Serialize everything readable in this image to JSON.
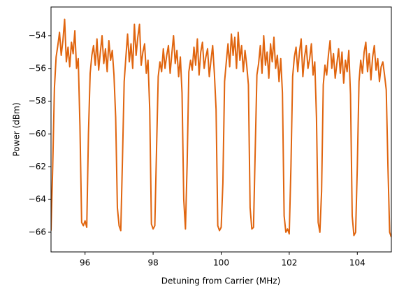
{
  "chart_data": {
    "type": "line",
    "xlabel": "Detuning from Carrier (MHz)",
    "ylabel": "Power (dBm)",
    "xlim": [
      95,
      105
    ],
    "xticks": [
      96,
      98,
      100,
      102,
      104
    ],
    "ylim": [
      -67.2,
      -52.25
    ],
    "yticks": [
      {
        "value": -66,
        "label": "−66"
      },
      {
        "value": -64,
        "label": "−64"
      },
      {
        "value": -62,
        "label": "−62"
      },
      {
        "value": -60,
        "label": "−60"
      },
      {
        "value": -58,
        "label": "−58"
      },
      {
        "value": -56,
        "label": "−56"
      },
      {
        "value": -54,
        "label": "−54"
      }
    ],
    "series": [
      {
        "color": "#e0650f",
        "x": [
          95.0,
          95.05,
          95.1,
          95.15,
          95.2,
          95.25,
          95.3,
          95.35,
          95.4,
          95.45,
          95.5,
          95.55,
          95.6,
          95.65,
          95.7,
          95.75,
          95.8,
          95.85,
          95.9,
          95.95,
          96.0,
          96.05,
          96.1,
          96.15,
          96.2,
          96.25,
          96.3,
          96.35,
          96.4,
          96.45,
          96.5,
          96.55,
          96.6,
          96.65,
          96.7,
          96.75,
          96.8,
          96.85,
          96.9,
          96.95,
          97.0,
          97.05,
          97.1,
          97.15,
          97.2,
          97.25,
          97.3,
          97.35,
          97.4,
          97.45,
          97.5,
          97.55,
          97.6,
          97.65,
          97.7,
          97.75,
          97.8,
          97.85,
          97.9,
          97.95,
          98.0,
          98.05,
          98.1,
          98.15,
          98.2,
          98.25,
          98.3,
          98.35,
          98.4,
          98.45,
          98.5,
          98.55,
          98.6,
          98.65,
          98.7,
          98.75,
          98.8,
          98.85,
          98.9,
          98.95,
          99.0,
          99.05,
          99.1,
          99.15,
          99.2,
          99.25,
          99.3,
          99.35,
          99.4,
          99.45,
          99.5,
          99.55,
          99.6,
          99.65,
          99.7,
          99.75,
          99.8,
          99.85,
          99.9,
          99.95,
          100.0,
          100.05,
          100.1,
          100.15,
          100.2,
          100.25,
          100.3,
          100.35,
          100.4,
          100.45,
          100.5,
          100.55,
          100.6,
          100.65,
          100.7,
          100.75,
          100.8,
          100.85,
          100.9,
          100.95,
          101.0,
          101.05,
          101.1,
          101.15,
          101.2,
          101.25,
          101.3,
          101.35,
          101.4,
          101.45,
          101.5,
          101.55,
          101.6,
          101.65,
          101.7,
          101.75,
          101.8,
          101.85,
          101.9,
          101.95,
          102.0,
          102.05,
          102.1,
          102.15,
          102.2,
          102.25,
          102.3,
          102.35,
          102.4,
          102.45,
          102.5,
          102.55,
          102.6,
          102.65,
          102.7,
          102.75,
          102.8,
          102.85,
          102.9,
          102.95,
          103.0,
          103.05,
          103.1,
          103.15,
          103.2,
          103.25,
          103.3,
          103.35,
          103.4,
          103.45,
          103.5,
          103.55,
          103.6,
          103.65,
          103.7,
          103.75,
          103.8,
          103.85,
          103.9,
          103.95,
          104.0,
          104.05,
          104.1,
          104.15,
          104.2,
          104.25,
          104.3,
          104.35,
          104.4,
          104.45,
          104.5,
          104.55,
          104.6,
          104.65,
          104.7,
          104.75,
          104.8,
          104.85,
          104.9,
          104.95,
          105.0
        ],
        "values": [
          -65.9,
          -62.0,
          -57.2,
          -55.3,
          -54.6,
          -53.8,
          -55.2,
          -54.3,
          -53.0,
          -55.6,
          -54.7,
          -55.9,
          -54.4,
          -55.1,
          -53.7,
          -56.0,
          -55.4,
          -59.5,
          -65.4,
          -65.6,
          -65.3,
          -65.7,
          -60.0,
          -56.3,
          -55.2,
          -54.6,
          -55.8,
          -54.2,
          -56.1,
          -55.0,
          -54.0,
          -55.7,
          -54.8,
          -56.2,
          -54.3,
          -55.5,
          -54.9,
          -56.4,
          -59.0,
          -64.5,
          -65.6,
          -65.9,
          -61.5,
          -56.8,
          -55.3,
          -53.9,
          -55.6,
          -54.5,
          -56.0,
          -53.3,
          -55.2,
          -54.1,
          -53.3,
          -55.8,
          -55.0,
          -54.5,
          -56.3,
          -55.5,
          -58.5,
          -65.5,
          -65.8,
          -65.6,
          -61.0,
          -56.5,
          -55.6,
          -56.2,
          -54.8,
          -56.0,
          -55.2,
          -54.6,
          -56.3,
          -55.1,
          -54.0,
          -55.7,
          -54.9,
          -56.5,
          -55.3,
          -57.5,
          -64.0,
          -65.8,
          -61.8,
          -56.2,
          -55.5,
          -56.1,
          -54.7,
          -55.8,
          -54.2,
          -56.4,
          -55.0,
          -54.4,
          -56.0,
          -55.3,
          -54.8,
          -56.5,
          -55.5,
          -54.6,
          -56.3,
          -58.5,
          -65.6,
          -65.9,
          -65.7,
          -63.0,
          -56.8,
          -55.6,
          -54.5,
          -55.9,
          -53.9,
          -55.2,
          -54.1,
          -56.0,
          -53.8,
          -55.5,
          -54.6,
          -56.2,
          -54.9,
          -55.8,
          -57.0,
          -64.5,
          -65.8,
          -65.7,
          -61.0,
          -56.4,
          -55.7,
          -54.6,
          -56.3,
          -54.0,
          -55.8,
          -55.0,
          -56.6,
          -54.5,
          -55.6,
          -54.1,
          -56.0,
          -55.2,
          -56.8,
          -55.4,
          -57.5,
          -65.0,
          -66.0,
          -65.8,
          -66.1,
          -62.0,
          -56.5,
          -55.3,
          -54.7,
          -56.2,
          -55.0,
          -54.2,
          -56.5,
          -55.3,
          -54.6,
          -56.0,
          -55.4,
          -54.5,
          -56.4,
          -55.6,
          -59.0,
          -65.4,
          -66.0,
          -63.5,
          -57.0,
          -55.8,
          -56.4,
          -55.2,
          -54.3,
          -56.0,
          -55.1,
          -56.6,
          -55.7,
          -54.8,
          -56.3,
          -55.0,
          -56.9,
          -55.5,
          -56.2,
          -54.9,
          -57.6,
          -65.0,
          -66.2,
          -66.0,
          -62.0,
          -56.8,
          -55.5,
          -56.3,
          -55.0,
          -54.4,
          -56.2,
          -55.1,
          -56.7,
          -55.3,
          -54.6,
          -56.1,
          -55.4,
          -56.8,
          -55.9,
          -55.6,
          -56.4,
          -57.3,
          -62.0,
          -66.0,
          -66.3
        ]
      }
    ]
  }
}
